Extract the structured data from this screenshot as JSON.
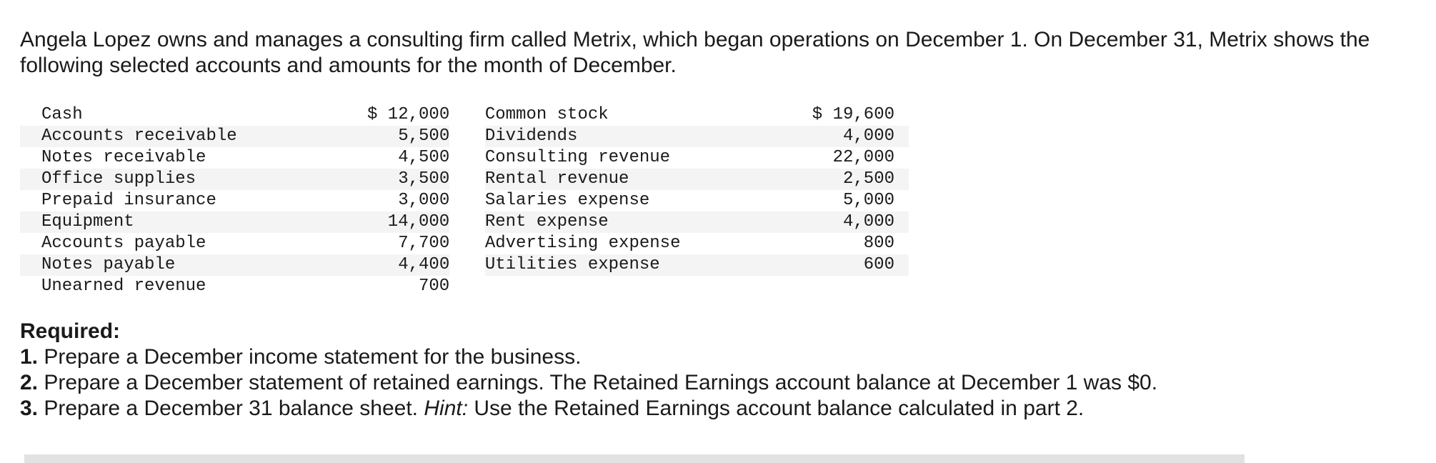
{
  "intro": "Angela Lopez owns and manages a consulting firm called Metrix, which began operations on December 1. On December 31, Metrix shows the following selected accounts and amounts for the month of December.",
  "accounts": [
    {
      "name1": "Cash",
      "value1": "$ 12,000",
      "name2": "Common stock",
      "value2": "$ 19,600"
    },
    {
      "name1": "Accounts receivable",
      "value1": "5,500",
      "name2": "Dividends",
      "value2": "4,000"
    },
    {
      "name1": "Notes receivable",
      "value1": "4,500",
      "name2": "Consulting revenue",
      "value2": "22,000"
    },
    {
      "name1": "Office supplies",
      "value1": "3,500",
      "name2": "Rental revenue",
      "value2": "2,500"
    },
    {
      "name1": "Prepaid insurance",
      "value1": "3,000",
      "name2": "Salaries expense",
      "value2": "5,000"
    },
    {
      "name1": "Equipment",
      "value1": "14,000",
      "name2": "Rent expense",
      "value2": "4,000"
    },
    {
      "name1": "Accounts payable",
      "value1": "7,700",
      "name2": "Advertising expense",
      "value2": "800"
    },
    {
      "name1": "Notes payable",
      "value1": "4,400",
      "name2": "Utilities expense",
      "value2": "600"
    },
    {
      "name1": "Unearned revenue",
      "value1": "700",
      "name2": "",
      "value2": ""
    }
  ],
  "required": {
    "heading": "Required:",
    "items": [
      {
        "num": "1.",
        "text": " Prepare a December income statement for the business.",
        "hint": "",
        "after": ""
      },
      {
        "num": "2.",
        "text": " Prepare a December statement of retained earnings. The Retained Earnings account balance at December 1 was $0.",
        "hint": "",
        "after": ""
      },
      {
        "num": "3.",
        "text": " Prepare a December 31 balance sheet. ",
        "hint": "Hint:",
        "after": " Use the Retained Earnings account balance calculated in part 2."
      }
    ]
  }
}
